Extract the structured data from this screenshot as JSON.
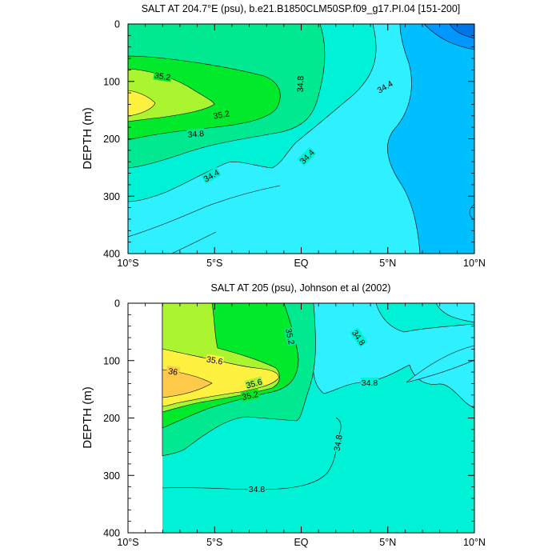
{
  "chart_data": [
    {
      "type": "heatmap",
      "title": "SALT AT 204.7°E (psu), b.e21.B1850CLM50SP.f09_g17.PI.04 [151-200]",
      "xlabel": "",
      "ylabel": "DEPTH (m)",
      "x_ticks": [
        "10°S",
        "5°S",
        "EQ",
        "5°N",
        "10°N"
      ],
      "xlim": [
        -10,
        10
      ],
      "ylim": [
        400,
        0
      ],
      "y_ticks": [
        "0",
        "100",
        "200",
        "300",
        "400"
      ],
      "contour_labels": [
        "35.2",
        "34.8",
        "34.4",
        "35.2",
        "34.8",
        "34.4",
        "34.4"
      ],
      "legend": "none",
      "colors": {
        "36.0": "#FFC94A",
        "35.6": "#FFF140",
        "35.2": "#AAF52F",
        "34.8": "#00EA2B",
        "34.4": "#00E890",
        "34.0": "#00F2D6",
        "33.6": "#2FF0FF",
        "33.2": "#00BFFF",
        "32.8": "#0098FF"
      }
    },
    {
      "type": "heatmap",
      "title": "SALT AT 205 (psu), Johnson et al (2002)",
      "xlabel": "",
      "ylabel": "DEPTH (m)",
      "x_ticks": [
        "10°S",
        "5°S",
        "EQ",
        "5°N",
        "10°N"
      ],
      "xlim": [
        -10,
        10
      ],
      "ylim": [
        400,
        0
      ],
      "y_ticks": [
        "0",
        "100",
        "200",
        "300",
        "400"
      ],
      "contour_labels": [
        "35.6",
        "36",
        "35.6",
        "35.2",
        "35.2",
        "34.8",
        "34.8",
        "34.8",
        "34.8"
      ],
      "legend": "none"
    }
  ]
}
